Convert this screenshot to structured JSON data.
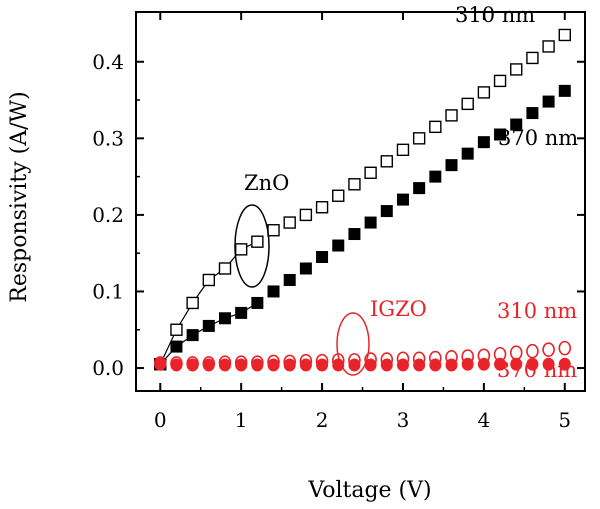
{
  "chart_data": {
    "type": "scatter",
    "xlabel": "Voltage (V)",
    "ylabel": "Responsivity (A/W)",
    "xlim": [
      -0.3,
      5.25
    ],
    "ylim": [
      -0.03,
      0.465
    ],
    "xticks": [
      "0",
      "1",
      "2",
      "3",
      "4",
      "5"
    ],
    "yticks": [
      "0.0",
      "0.1",
      "0.2",
      "0.3",
      "0.4"
    ],
    "x": [
      0.0,
      0.2,
      0.4,
      0.6,
      0.8,
      1.0,
      1.2,
      1.4,
      1.6,
      1.8,
      2.0,
      2.2,
      2.4,
      2.6,
      2.8,
      3.0,
      3.2,
      3.4,
      3.6,
      3.8,
      4.0,
      4.2,
      4.4,
      4.6,
      4.8,
      5.0
    ],
    "series": [
      {
        "label": "ZnO 310 nm",
        "color": "#000000",
        "marker": "square-open",
        "connected_to": 1.2,
        "values": [
          0.005,
          0.05,
          0.085,
          0.115,
          0.13,
          0.155,
          0.165,
          0.18,
          0.19,
          0.2,
          0.21,
          0.225,
          0.24,
          0.255,
          0.27,
          0.285,
          0.3,
          0.315,
          0.33,
          0.345,
          0.36,
          0.375,
          0.39,
          0.405,
          0.42,
          0.435
        ]
      },
      {
        "label": "ZnO 370 nm",
        "color": "#000000",
        "marker": "square-filled",
        "connected_to": 1.2,
        "values": [
          0.005,
          0.028,
          0.043,
          0.055,
          0.065,
          0.072,
          0.085,
          0.1,
          0.115,
          0.13,
          0.145,
          0.16,
          0.175,
          0.19,
          0.205,
          0.22,
          0.235,
          0.25,
          0.265,
          0.28,
          0.295,
          0.305,
          0.318,
          0.333,
          0.348,
          0.362
        ]
      },
      {
        "label": "IGZO 310 nm",
        "color": "#e8242a",
        "marker": "circle-open",
        "values": [
          0.006,
          0.006,
          0.006,
          0.006,
          0.007,
          0.007,
          0.007,
          0.008,
          0.008,
          0.009,
          0.009,
          0.01,
          0.01,
          0.011,
          0.011,
          0.012,
          0.012,
          0.013,
          0.014,
          0.015,
          0.016,
          0.018,
          0.02,
          0.022,
          0.024,
          0.026
        ]
      },
      {
        "label": "IGZO 370 nm",
        "color": "#e8242a",
        "marker": "circle-filled",
        "values": [
          0.005,
          0.004,
          0.004,
          0.004,
          0.004,
          0.004,
          0.004,
          0.004,
          0.004,
          0.004,
          0.004,
          0.004,
          0.004,
          0.004,
          0.004,
          0.004,
          0.004,
          0.004,
          0.004,
          0.005,
          0.005,
          0.005,
          0.005,
          0.005,
          0.005,
          0.005
        ]
      }
    ],
    "annotations": {
      "zno": "ZnO",
      "zno_310": "310 nm",
      "zno_370": "370 nm",
      "igzo": "IGZO",
      "igzo_310": "310 nm",
      "igzo_370": "370 nm"
    },
    "colors": {
      "black": "#000000",
      "red": "#e8242a"
    }
  }
}
